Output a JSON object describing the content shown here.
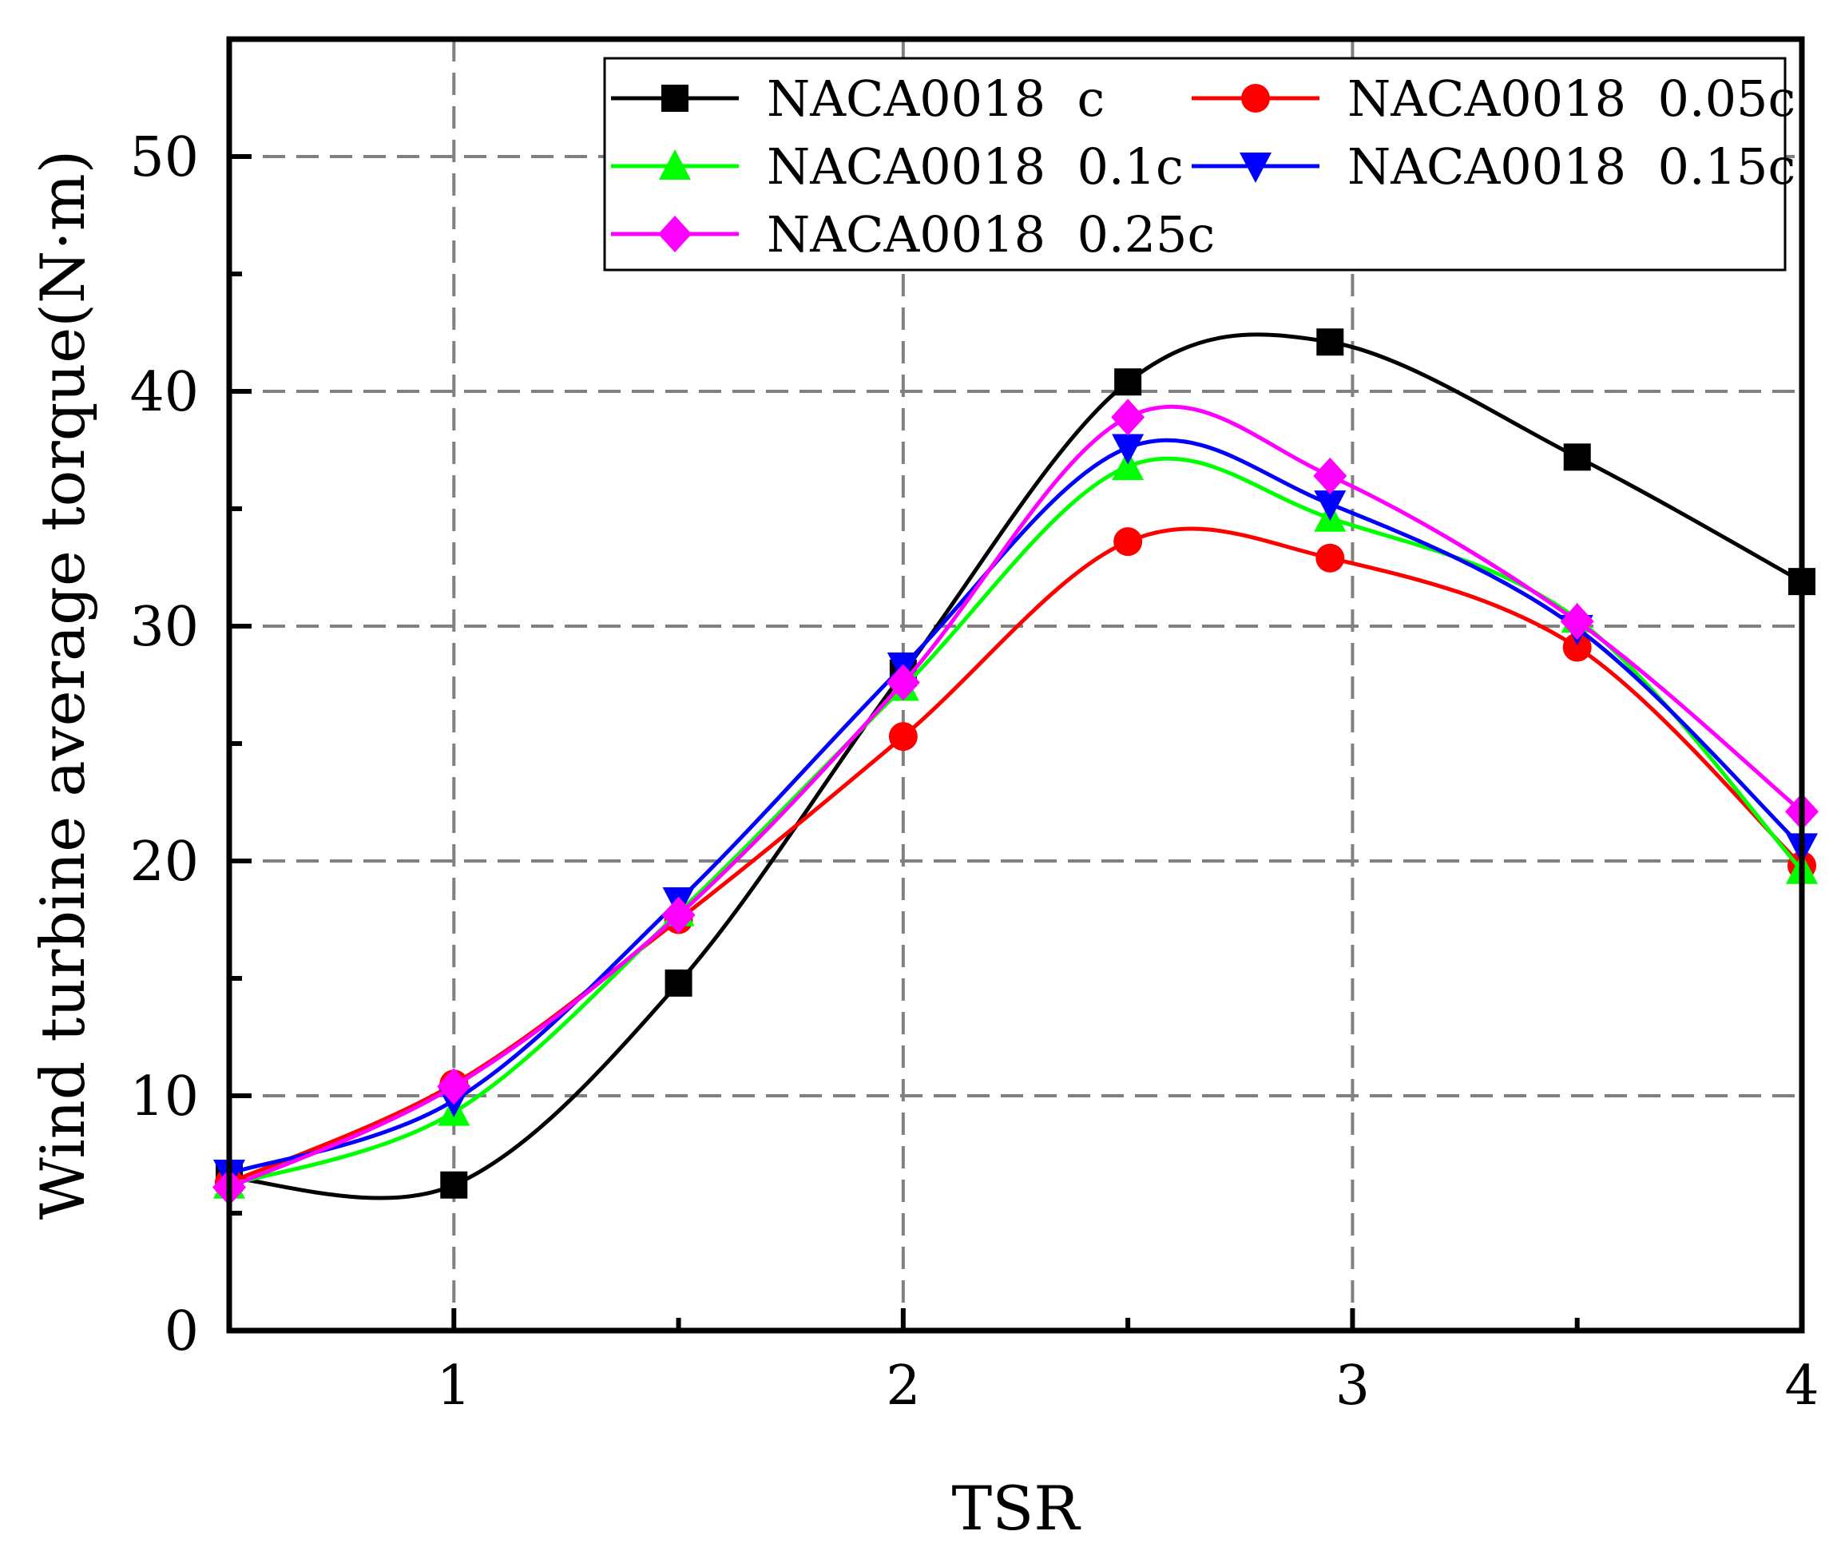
{
  "chart_data": {
    "type": "line",
    "title": "",
    "xlabel": "TSR",
    "ylabel": "Wind turbine average torque(N·m)",
    "xlim": [
      0.5,
      4.0
    ],
    "ylim": [
      0,
      55
    ],
    "xticks": [
      1,
      2,
      3,
      4
    ],
    "xtick_labels": [
      "1",
      "2",
      "3",
      "4"
    ],
    "yticks": [
      0,
      10,
      20,
      30,
      40,
      50
    ],
    "ytick_labels": [
      "0",
      "10",
      "20",
      "30",
      "40",
      "50"
    ],
    "grid": true,
    "legend_position": "top-right",
    "series": [
      {
        "name": "NACA0018  c",
        "color": "#000000",
        "marker": "square",
        "x": [
          0.5,
          1.0,
          1.5,
          2.0,
          2.5,
          2.95,
          3.5,
          4.0
        ],
        "y": [
          6.5,
          6.2,
          14.8,
          28.0,
          40.4,
          42.1,
          37.2,
          31.9
        ]
      },
      {
        "name": "NACA0018  0.05c",
        "color": "#ff0000",
        "marker": "circle",
        "x": [
          0.5,
          1.0,
          1.5,
          2.0,
          2.5,
          2.95,
          3.5,
          4.0
        ],
        "y": [
          6.3,
          10.5,
          17.5,
          25.3,
          33.6,
          32.9,
          29.1,
          19.8
        ]
      },
      {
        "name": "NACA0018  0.1c",
        "color": "#00ff00",
        "marker": "triangle-up",
        "x": [
          0.5,
          1.0,
          1.5,
          2.0,
          2.5,
          2.95,
          3.5,
          4.0
        ],
        "y": [
          6.2,
          9.3,
          17.8,
          27.4,
          36.8,
          34.6,
          30.3,
          19.6
        ]
      },
      {
        "name": "NACA0018  0.15c",
        "color": "#0000ff",
        "marker": "triangle-down",
        "x": [
          0.5,
          1.0,
          1.5,
          2.0,
          2.5,
          2.95,
          3.5,
          4.0
        ],
        "y": [
          6.7,
          9.8,
          18.3,
          28.3,
          37.6,
          35.2,
          29.9,
          20.6
        ]
      },
      {
        "name": "NACA0018  0.25c",
        "color": "#ff00ff",
        "marker": "diamond",
        "x": [
          0.5,
          1.0,
          1.5,
          2.0,
          2.5,
          2.95,
          3.5,
          4.0
        ],
        "y": [
          6.1,
          10.4,
          17.7,
          27.6,
          38.9,
          36.4,
          30.2,
          22.1
        ]
      }
    ]
  }
}
